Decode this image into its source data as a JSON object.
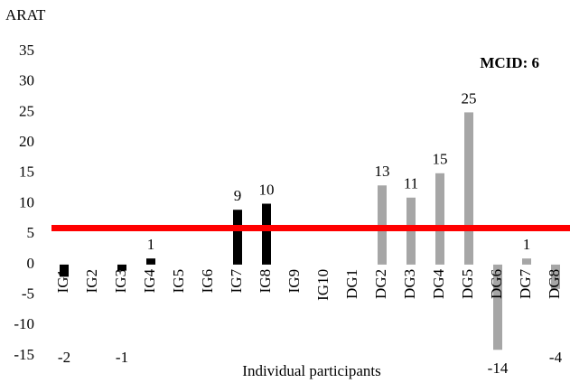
{
  "chart_data": {
    "type": "bar",
    "y_label": "ARAT",
    "x_label": "Individual participants",
    "categories": [
      "IG1",
      "IG2",
      "IG3",
      "IG4",
      "IG5",
      "IG6",
      "IG7",
      "IG8",
      "IG9",
      "IG10",
      "DG1",
      "DG2",
      "DG3",
      "DG4",
      "DG5",
      "DG6",
      "DG7",
      "DG8"
    ],
    "values": [
      -2,
      0,
      -1,
      1,
      0,
      0,
      9,
      10,
      0,
      0,
      0,
      13,
      11,
      15,
      25,
      -14,
      1,
      -4
    ],
    "colors": [
      "#000000",
      "#000000",
      "#000000",
      "#000000",
      "#000000",
      "#000000",
      "#000000",
      "#000000",
      "#000000",
      "#000000",
      "#a6a6a6",
      "#a6a6a6",
      "#a6a6a6",
      "#a6a6a6",
      "#a6a6a6",
      "#a6a6a6",
      "#a6a6a6",
      "#a6a6a6"
    ],
    "ylim": [
      -15,
      35
    ],
    "yticks": [
      -15,
      -10,
      -5,
      0,
      5,
      10,
      15,
      20,
      25,
      30,
      35
    ],
    "reference_line": {
      "value": 6,
      "label": "MCID: 6",
      "color": "#ff0000"
    }
  }
}
